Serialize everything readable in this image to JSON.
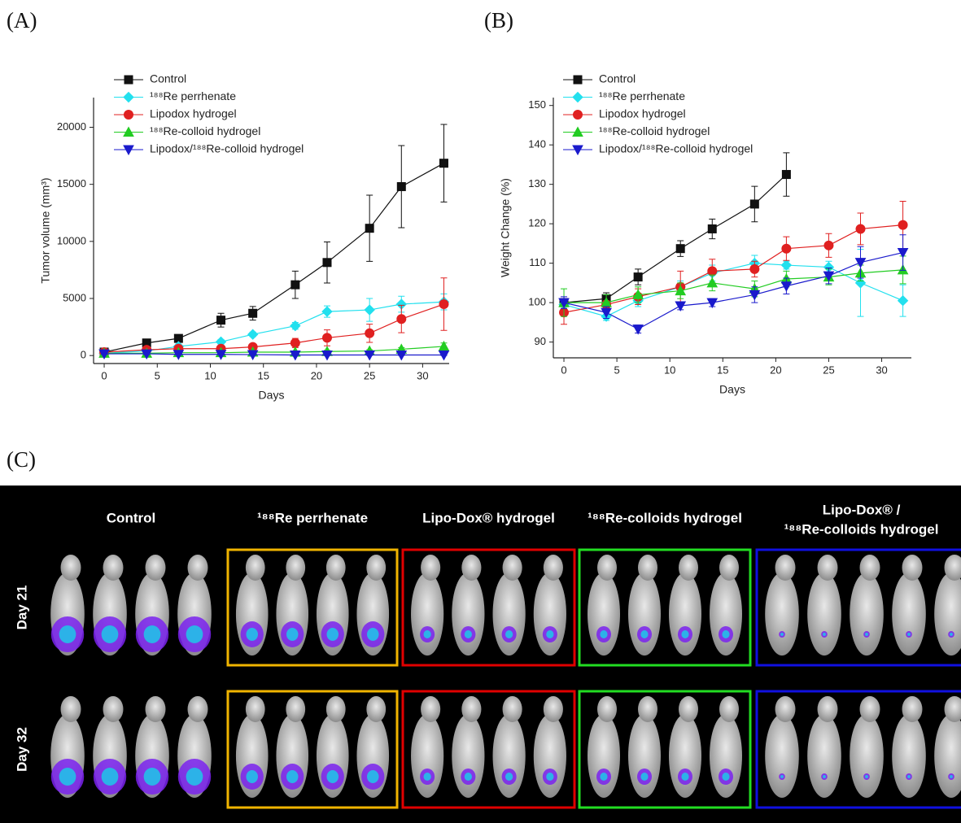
{
  "chart_data": [
    {
      "type": "line",
      "panel_label": "(A)",
      "x_label": "Days",
      "y_label": "Tumor volume (mm³)",
      "x": [
        0,
        4,
        7,
        11,
        14,
        18,
        21,
        25,
        28,
        32
      ],
      "xlim": [
        -1,
        32.5
      ],
      "xticks": [
        0,
        5,
        10,
        15,
        20,
        25,
        30
      ],
      "ylim": [
        -700,
        22600
      ],
      "yticks": [
        0,
        5000,
        10000,
        15000,
        20000
      ],
      "series": [
        {
          "name": "Control",
          "color": "#111111",
          "marker": "square",
          "values": [
            300,
            1100,
            1500,
            3100,
            3700,
            6200,
            8150,
            11150,
            14800,
            16850
          ],
          "errors": [
            100,
            200,
            300,
            600,
            600,
            1200,
            1800,
            2900,
            3600,
            3400
          ]
        },
        {
          "name": "¹⁸⁸Re perrhenate",
          "color": "#22e0ee",
          "marker": "diamond",
          "values": [
            200,
            400,
            800,
            1200,
            1850,
            2600,
            3850,
            4000,
            4500,
            4700
          ],
          "errors": [
            100,
            100,
            200,
            200,
            200,
            300,
            500,
            1000,
            700,
            700
          ]
        },
        {
          "name": "Lipodox hydrogel",
          "color": "#e02020",
          "marker": "circle",
          "values": [
            300,
            500,
            600,
            600,
            750,
            1100,
            1550,
            1950,
            3200,
            4500
          ],
          "errors": [
            100,
            100,
            100,
            150,
            200,
            400,
            700,
            800,
            1200,
            2300
          ]
        },
        {
          "name": "¹⁸⁸Re-colloid hydrogel",
          "color": "#22cc22",
          "marker": "triangle-up",
          "values": [
            200,
            200,
            250,
            250,
            300,
            300,
            350,
            400,
            550,
            800
          ],
          "errors": [
            50,
            50,
            50,
            50,
            100,
            100,
            100,
            100,
            150,
            300
          ]
        },
        {
          "name": "Lipodox/¹⁸⁸Re-colloid hydrogel",
          "color": "#1a1acc",
          "marker": "triangle-down",
          "values": [
            150,
            150,
            100,
            100,
            80,
            50,
            50,
            50,
            50,
            50
          ],
          "errors": [
            50,
            50,
            50,
            50,
            50,
            50,
            50,
            50,
            50,
            50
          ]
        }
      ]
    },
    {
      "type": "line",
      "panel_label": "(B)",
      "x_label": "Days",
      "y_label": "Weight Change (%)",
      "x": [
        0,
        4,
        7,
        11,
        14,
        18,
        21,
        25,
        28,
        32
      ],
      "xlim": [
        -1,
        32.8
      ],
      "xticks": [
        0,
        5,
        10,
        15,
        20,
        25,
        30
      ],
      "ylim": [
        86,
        152
      ],
      "yticks": [
        90,
        100,
        110,
        120,
        130,
        140,
        150
      ],
      "series": [
        {
          "name": "Control",
          "color": "#111111",
          "marker": "square",
          "values": [
            100,
            101,
            106.5,
            113.7,
            118.7,
            125,
            132.5,
            null,
            null,
            null
          ],
          "errors": [
            1,
            1.5,
            2,
            2,
            2.5,
            4.5,
            5.5,
            null,
            null,
            null
          ]
        },
        {
          "name": "¹⁸⁸Re perrhenate",
          "color": "#22e0ee",
          "marker": "diamond",
          "values": [
            99.5,
            96.5,
            100.5,
            104,
            107.5,
            110,
            109.5,
            109,
            105,
            100.5
          ],
          "errors": [
            1,
            1,
            1.5,
            1.5,
            2,
            2,
            1,
            1.5,
            8.5,
            4
          ]
        },
        {
          "name": "Lipodox hydrogel",
          "color": "#e02020",
          "marker": "circle",
          "values": [
            97.5,
            99.5,
            101.5,
            104,
            108,
            108.5,
            113.7,
            114.5,
            118.7,
            119.7
          ],
          "errors": [
            3,
            1,
            2,
            4,
            3,
            2,
            3,
            3,
            4,
            6
          ]
        },
        {
          "name": "¹⁸⁸Re-colloid hydrogel",
          "color": "#22cc22",
          "marker": "triangle-up",
          "values": [
            100,
            100,
            102,
            103,
            105,
            103.5,
            106,
            106.5,
            107.5,
            108.3
          ],
          "errors": [
            3.5,
            2,
            2,
            2,
            2,
            2,
            2,
            2,
            2,
            3.5
          ]
        },
        {
          "name": "Lipodox/¹⁸⁸Re-colloid hydrogel",
          "color": "#1a1acc",
          "marker": "triangle-down",
          "values": [
            100,
            97.5,
            93.3,
            99.2,
            100,
            102,
            104.2,
            106.8,
            110.2,
            112.7
          ],
          "errors": [
            1.5,
            1.5,
            1,
            1,
            1,
            2,
            2,
            2,
            4,
            4.5
          ]
        }
      ]
    }
  ],
  "panel_c": {
    "panel_label": "(C)",
    "columns": [
      [
        "Control"
      ],
      [
        "¹⁸⁸Re perrhenate"
      ],
      [
        "Lipo-Dox® hydrogel"
      ],
      [
        "¹⁸⁸Re-colloids hydrogel"
      ],
      [
        "Lipo-Dox® /",
        "¹⁸⁸Re-colloids hydrogel"
      ]
    ],
    "border_colors": [
      null,
      "#f0b400",
      "#e00000",
      "#22dd22",
      "#1010e0"
    ],
    "rows": [
      "Day 21",
      "Day 32"
    ]
  }
}
